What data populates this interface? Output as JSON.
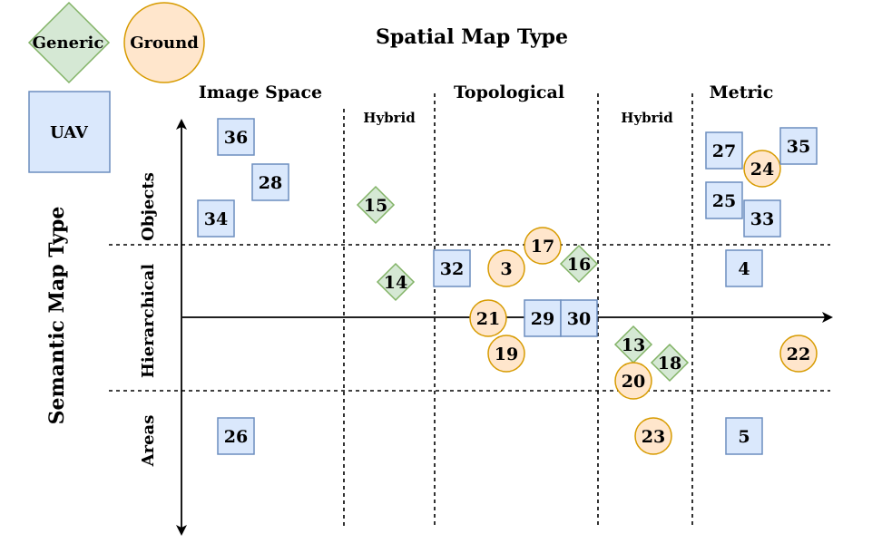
{
  "titles": {
    "x_title": "Spatial Map Type",
    "y_title": "Semantic Map Type"
  },
  "legend": {
    "generic": "Generic",
    "ground": "Ground",
    "uav": "UAV"
  },
  "columns": {
    "image_space": "Image Space",
    "hybrid_left": "Hybrid",
    "topological": "Topological",
    "hybrid_right": "Hybrid",
    "metric": "Metric"
  },
  "rows": {
    "objects": "Objects",
    "hierarchical": "Hierarchical",
    "areas": "Areas"
  },
  "colors": {
    "uav_fill": "#dae8fc",
    "uav_stroke": "#6c8ebf",
    "ground_fill": "#ffe6cc",
    "ground_stroke": "#d79b00",
    "generic_fill": "#d5e8d4",
    "generic_stroke": "#82b366"
  },
  "items": [
    {
      "id": "36",
      "type": "uav"
    },
    {
      "id": "28",
      "type": "uav"
    },
    {
      "id": "34",
      "type": "uav"
    },
    {
      "id": "15",
      "type": "generic"
    },
    {
      "id": "27",
      "type": "uav"
    },
    {
      "id": "24",
      "type": "ground"
    },
    {
      "id": "35",
      "type": "uav"
    },
    {
      "id": "25",
      "type": "uav"
    },
    {
      "id": "33",
      "type": "uav"
    },
    {
      "id": "17",
      "type": "ground"
    },
    {
      "id": "32",
      "type": "uav"
    },
    {
      "id": "3",
      "type": "ground"
    },
    {
      "id": "16",
      "type": "generic"
    },
    {
      "id": "14",
      "type": "generic"
    },
    {
      "id": "4",
      "type": "uav"
    },
    {
      "id": "21",
      "type": "ground"
    },
    {
      "id": "29",
      "type": "uav"
    },
    {
      "id": "30",
      "type": "uav"
    },
    {
      "id": "13",
      "type": "generic"
    },
    {
      "id": "19",
      "type": "ground"
    },
    {
      "id": "18",
      "type": "generic"
    },
    {
      "id": "20",
      "type": "ground"
    },
    {
      "id": "22",
      "type": "ground"
    },
    {
      "id": "26",
      "type": "uav"
    },
    {
      "id": "23",
      "type": "ground"
    },
    {
      "id": "5",
      "type": "uav"
    }
  ]
}
